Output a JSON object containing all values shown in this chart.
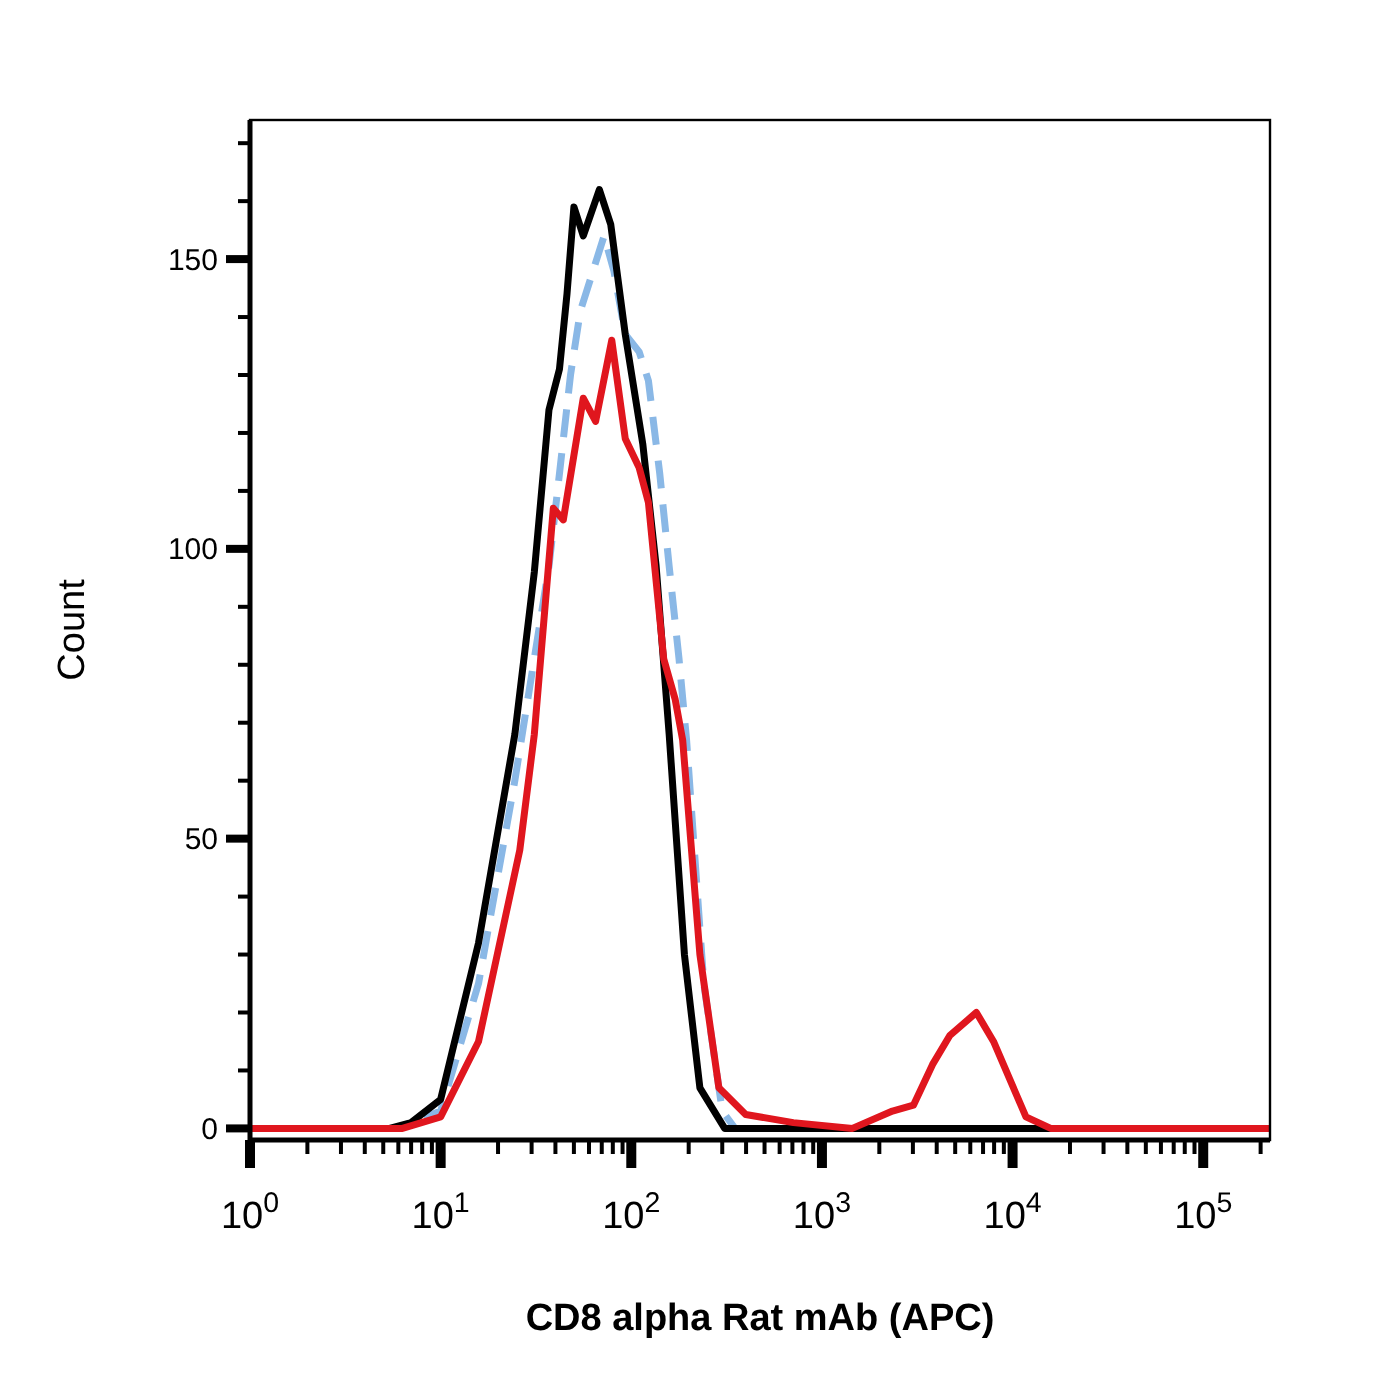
{
  "chart_data": {
    "type": "line",
    "xlabel": "CD8 alpha Rat mAb (APC)",
    "ylabel": "Count",
    "log": "x",
    "xlim": [
      1,
      224000
    ],
    "ylim": [
      -2,
      174
    ],
    "xticks": [
      {
        "value": 1,
        "label": "10$^{0}$"
      },
      {
        "value": 2,
        "label": null
      },
      {
        "value": 3,
        "label": null
      },
      {
        "value": 4,
        "label": null
      },
      {
        "value": 5,
        "label": null
      },
      {
        "value": 6,
        "label": null
      },
      {
        "value": 7,
        "label": null
      },
      {
        "value": 8,
        "label": null
      },
      {
        "value": 9,
        "label": null
      },
      {
        "value": 10,
        "label": "10$^{1}$"
      },
      {
        "value": 20,
        "label": null
      },
      {
        "value": 30,
        "label": null
      },
      {
        "value": 40,
        "label": null
      },
      {
        "value": 50,
        "label": null
      },
      {
        "value": 60,
        "label": null
      },
      {
        "value": 70,
        "label": null
      },
      {
        "value": 80,
        "label": null
      },
      {
        "value": 90,
        "label": null
      },
      {
        "value": 100,
        "label": "10$^{2}$"
      },
      {
        "value": 200,
        "label": null
      },
      {
        "value": 300,
        "label": null
      },
      {
        "value": 400,
        "label": null
      },
      {
        "value": 500,
        "label": null
      },
      {
        "value": 600,
        "label": null
      },
      {
        "value": 700,
        "label": null
      },
      {
        "value": 800,
        "label": null
      },
      {
        "value": 900,
        "label": null
      },
      {
        "value": 1000,
        "label": "10$^{3}$"
      },
      {
        "value": 2000,
        "label": null
      },
      {
        "value": 3000,
        "label": null
      },
      {
        "value": 4000,
        "label": null
      },
      {
        "value": 5000,
        "label": null
      },
      {
        "value": 6000,
        "label": null
      },
      {
        "value": 7000,
        "label": null
      },
      {
        "value": 8000,
        "label": null
      },
      {
        "value": 9000,
        "label": null
      },
      {
        "value": 10000,
        "label": "10$^{4}$"
      },
      {
        "value": 20000,
        "label": null
      },
      {
        "value": 30000,
        "label": null
      },
      {
        "value": 40000,
        "label": null
      },
      {
        "value": 50000,
        "label": null
      },
      {
        "value": 60000,
        "label": null
      },
      {
        "value": 70000,
        "label": null
      },
      {
        "value": 80000,
        "label": null
      },
      {
        "value": 90000,
        "label": null
      },
      {
        "value": 100000,
        "label": "10$^{5}$"
      },
      {
        "value": 200000,
        "label": null
      }
    ],
    "yticks": [
      0,
      {
        "value": 10,
        "label": null
      },
      {
        "value": 20,
        "label": null
      },
      {
        "value": 30,
        "label": null
      },
      {
        "value": 40,
        "label": null
      },
      50,
      {
        "value": 60,
        "label": null
      },
      {
        "value": 70,
        "label": null
      },
      {
        "value": 80,
        "label": null
      },
      {
        "value": 90,
        "label": null
      },
      100,
      {
        "value": 110,
        "label": null
      },
      {
        "value": 120,
        "label": null
      },
      {
        "value": 130,
        "label": null
      },
      {
        "value": 140,
        "label": null
      },
      150,
      {
        "value": 160,
        "label": null
      },
      {
        "value": 170,
        "label": null
      }
    ],
    "grid": false,
    "series": [
      {
        "color": "#8ab8e6",
        "line_style": "dashed",
        "x": [
          1,
          5.8,
          10,
          15.8,
          24.5,
          37,
          42,
          48,
          54,
          72,
          81,
          93,
          110,
          123,
          141,
          158,
          178,
          195,
          240,
          300,
          350,
          224000
        ],
        "values": [
          0,
          0,
          3,
          25,
          60,
          97,
          113,
          130,
          141,
          154,
          148,
          137,
          134,
          129,
          113,
          97,
          81,
          67,
          25,
          3,
          0,
          0
        ]
      },
      {
        "color": "#000000",
        "line_style": "solid",
        "x": [
          1,
          5.4,
          7,
          10,
          15.8,
          24.5,
          31,
          37,
          42,
          46,
          50,
          56,
          68,
          78,
          93,
          115,
          135,
          158,
          190,
          229,
          309,
          224000
        ],
        "values": [
          0,
          0,
          1,
          5,
          32,
          68,
          96,
          124,
          131,
          144,
          159,
          154,
          162,
          156,
          137,
          118,
          97,
          68,
          30,
          7,
          0,
          0
        ]
      },
      {
        "color": "#e0161e",
        "line_style": "solid",
        "x": [
          1,
          6.3,
          10,
          15.8,
          26,
          31,
          39,
          44,
          56,
          65,
          79,
          93,
          110,
          123,
          148,
          170,
          186,
          229,
          288,
          398,
          708,
          1445,
          2344,
          3020,
          3800,
          4677,
          6457,
          7943,
          11750,
          15850,
          224000
        ],
        "values": [
          0,
          0,
          2,
          15,
          48,
          68,
          107,
          105,
          126,
          122,
          136,
          119,
          114,
          108,
          81,
          74,
          67,
          30,
          7,
          2.4,
          1,
          0,
          3,
          4,
          11,
          16,
          20,
          15,
          2,
          0,
          0
        ]
      }
    ]
  }
}
